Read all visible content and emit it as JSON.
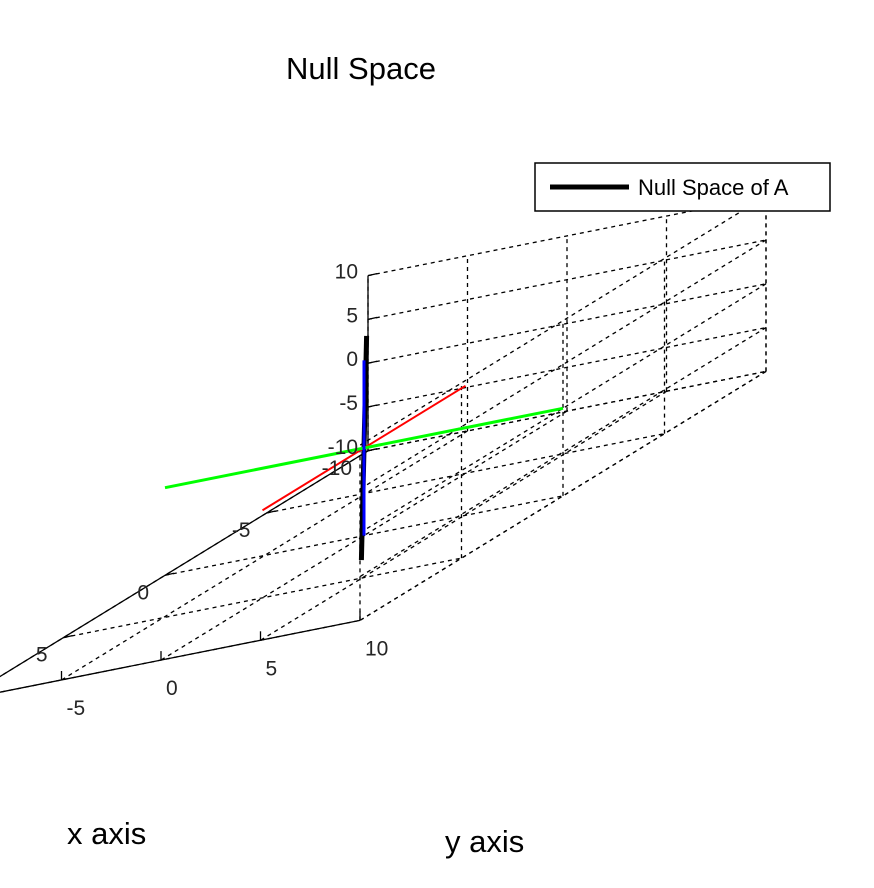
{
  "chart_data": {
    "type": "line3d",
    "title": "Null Space",
    "xlabel": "x axis",
    "ylabel": "y axis",
    "zlabel": "",
    "xlim": [
      -10,
      10
    ],
    "ylim": [
      -10,
      10
    ],
    "zlim": [
      -10,
      10
    ],
    "xticks": [
      -10,
      -5,
      0,
      5,
      10
    ],
    "yticks": [
      -10,
      -5,
      0,
      5,
      10
    ],
    "zticks": [
      -10,
      -5,
      0,
      5,
      10
    ],
    "grid": true,
    "legend_position": "top-right",
    "series": [
      {
        "name": "Null Space of A",
        "color": "#000000",
        "legend": true,
        "points": [
          [
            -6.5,
            -6.5,
            6.5
          ],
          [
            6.5,
            6.5,
            -6.5
          ]
        ]
      },
      {
        "color": "#ff0000",
        "legend": false,
        "points": [
          [
            -5,
            0,
            0
          ],
          [
            5,
            0,
            0
          ]
        ]
      },
      {
        "color": "#00ff00",
        "legend": false,
        "points": [
          [
            0,
            -10,
            0
          ],
          [
            0,
            10,
            0
          ]
        ]
      },
      {
        "color": "#0000ff",
        "legend": false,
        "points": [
          [
            0,
            0,
            -10
          ],
          [
            0,
            0,
            10
          ]
        ]
      }
    ]
  }
}
